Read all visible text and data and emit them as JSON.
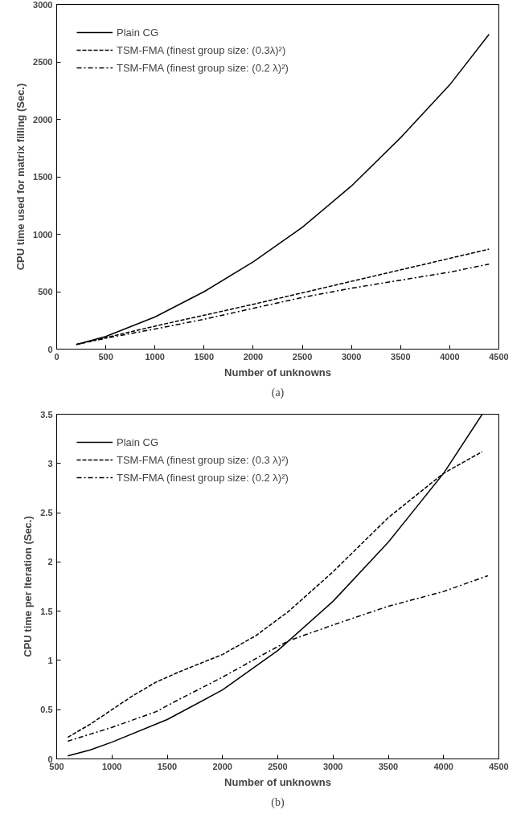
{
  "chart_data": [
    {
      "type": "line",
      "xlabel": "Number of unknowns",
      "ylabel": "CPU time used for matrix filling (Sec.)",
      "annotations": [
        "(a)"
      ],
      "xlim": [
        0,
        4500
      ],
      "xticks": [
        0,
        500,
        1000,
        1500,
        2000,
        2500,
        3000,
        3500,
        4000,
        4500
      ],
      "ylim": [
        0,
        3000
      ],
      "yticks": [
        0,
        500,
        1000,
        1500,
        2000,
        2500,
        3000
      ],
      "grid": false,
      "legend": "top left",
      "marker": "none",
      "series": [
        {
          "name": "Plain CG",
          "color": "#000000",
          "line_style": "solid",
          "x": [
            200,
            500,
            1000,
            1500,
            2000,
            2500,
            3000,
            3500,
            4000,
            4400
          ],
          "values": [
            40,
            110,
            280,
            500,
            760,
            1060,
            1420,
            1840,
            2300,
            2740
          ]
        },
        {
          "name": "TSM-FMA (finest group size: (0.3λ)²)",
          "color": "#000000",
          "line_style": "dashed",
          "x": [
            200,
            500,
            1000,
            1500,
            2000,
            2500,
            3000,
            3500,
            4000,
            4400
          ],
          "values": [
            40,
            100,
            200,
            295,
            390,
            490,
            590,
            690,
            790,
            870
          ]
        },
        {
          "name": "TSM-FMA (finest group size: (0.2 λ)²)",
          "color": "#000000",
          "line_style": "dashdot",
          "x": [
            200,
            500,
            1000,
            1500,
            2000,
            2500,
            3000,
            3500,
            4000,
            4400
          ],
          "values": [
            40,
            95,
            175,
            260,
            355,
            450,
            530,
            600,
            670,
            740
          ]
        }
      ]
    },
    {
      "type": "line",
      "xlabel": "Number of unknowns",
      "ylabel": "CPU time per Iteration (Sec.)",
      "annotations": [
        "(b)"
      ],
      "xlim": [
        500,
        4500
      ],
      "xticks": [
        500,
        1000,
        1500,
        2000,
        2500,
        3000,
        3500,
        4000,
        4500
      ],
      "ylim": [
        0,
        3.5
      ],
      "yticks": [
        0,
        0.5,
        1,
        1.5,
        2,
        2.5,
        3,
        3.5
      ],
      "grid": false,
      "legend": "top left",
      "marker": "none",
      "series": [
        {
          "name": "Plain CG",
          "color": "#000000",
          "line_style": "solid",
          "x": [
            600,
            800,
            1000,
            1500,
            2000,
            2500,
            3000,
            3500,
            4000,
            4350
          ],
          "values": [
            0.03,
            0.09,
            0.17,
            0.4,
            0.7,
            1.1,
            1.6,
            2.2,
            2.9,
            3.5
          ]
        },
        {
          "name": "TSM-FMA (finest group size: (0.3 λ)²)",
          "color": "#000000",
          "line_style": "dashed",
          "x": [
            600,
            800,
            1000,
            1200,
            1400,
            1600,
            2000,
            2300,
            2600,
            3000,
            3500,
            4000,
            4350
          ],
          "values": [
            0.22,
            0.35,
            0.5,
            0.65,
            0.78,
            0.88,
            1.06,
            1.25,
            1.5,
            1.9,
            2.45,
            2.9,
            3.12
          ]
        },
        {
          "name": "TSM-FMA (finest group size: (0.2 λ)²)",
          "color": "#000000",
          "line_style": "dashdot",
          "x": [
            600,
            800,
            1000,
            1400,
            1600,
            2000,
            2400,
            2600,
            3000,
            3500,
            4000,
            4400
          ],
          "values": [
            0.18,
            0.25,
            0.32,
            0.48,
            0.6,
            0.83,
            1.08,
            1.2,
            1.36,
            1.55,
            1.7,
            1.86
          ]
        }
      ]
    }
  ]
}
